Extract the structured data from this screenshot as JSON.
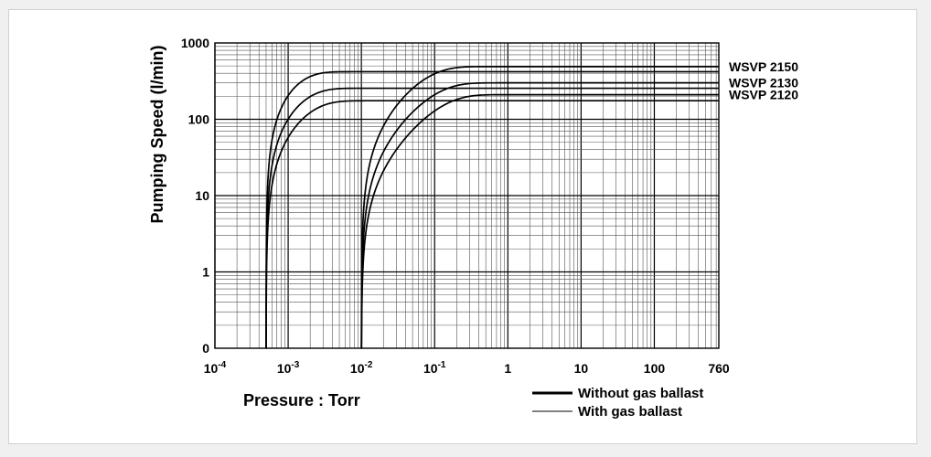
{
  "chart_data": {
    "type": "line",
    "xlabel": "Pressure : Torr",
    "ylabel": "Pumping Speed (l/min)",
    "x_scale": "log",
    "y_scale": "log",
    "xlim": [
      0.0001,
      760
    ],
    "ylim": [
      0.1,
      1000
    ],
    "grid": true,
    "x_ticks": [
      {
        "value": 0.0001,
        "base": "10",
        "exp": "-4"
      },
      {
        "value": 0.001,
        "base": "10",
        "exp": "-3"
      },
      {
        "value": 0.01,
        "base": "10",
        "exp": "-2"
      },
      {
        "value": 0.1,
        "base": "10",
        "exp": "-1"
      },
      {
        "value": 1,
        "base": "1",
        "exp": ""
      },
      {
        "value": 10,
        "base": "10",
        "exp": ""
      },
      {
        "value": 100,
        "base": "100",
        "exp": ""
      },
      {
        "value": 760,
        "base": "760",
        "exp": ""
      }
    ],
    "y_ticks": [
      {
        "value": 0.1,
        "label": "0"
      },
      {
        "value": 1,
        "label": "1"
      },
      {
        "value": 10,
        "label": "10"
      },
      {
        "value": 100,
        "label": "100"
      },
      {
        "value": 1000,
        "label": "1000"
      }
    ],
    "legend": {
      "placement": "bottom-right",
      "entries": [
        {
          "label": "Without gas ballast",
          "style": "thick"
        },
        {
          "label": "With gas ballast",
          "style": "thin"
        }
      ]
    },
    "series": [
      {
        "name": "WSVP 2150",
        "condition": "without gas ballast",
        "x_start": 0.0005,
        "plateau": 420,
        "k": 0.00075
      },
      {
        "name": "WSVP 2130",
        "condition": "without gas ballast",
        "x_start": 0.0005,
        "plateau": 255,
        "k": 0.001
      },
      {
        "name": "WSVP 2120",
        "condition": "without gas ballast",
        "x_start": 0.0005,
        "plateau": 175,
        "k": 0.00125
      },
      {
        "name": "WSVP 2150",
        "condition": "with gas ballast",
        "x_start": 0.01,
        "plateau": 490,
        "k": 0.055
      },
      {
        "name": "WSVP 2130",
        "condition": "with gas ballast",
        "x_start": 0.01,
        "plateau": 300,
        "k": 0.075
      },
      {
        "name": "WSVP 2120",
        "condition": "with gas ballast",
        "x_start": 0.01,
        "plateau": 210,
        "k": 0.095
      }
    ],
    "series_labels": [
      "WSVP 2150",
      "WSVP 2130",
      "WSVP 2120"
    ]
  }
}
